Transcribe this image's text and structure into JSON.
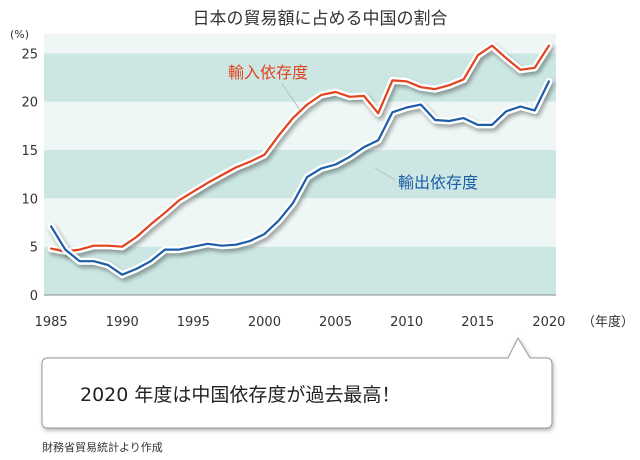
{
  "chart_data": {
    "type": "line",
    "title": "日本の貿易額に占める中国の割合",
    "y_unit_label": "(%)",
    "x_unit_label": "（年度）",
    "ylim": [
      0,
      27
    ],
    "xlim": [
      1984.5,
      2020.5
    ],
    "y_ticks": [
      0,
      5,
      10,
      15,
      20,
      25
    ],
    "x_ticks": [
      1985,
      1990,
      1995,
      2000,
      2005,
      2010,
      2015,
      2020
    ],
    "band_color_a": "#cce7e3",
    "band_color_b": "#eef7f6",
    "x": [
      1985,
      1986,
      1987,
      1988,
      1989,
      1990,
      1991,
      1992,
      1993,
      1994,
      1995,
      1996,
      1997,
      1998,
      1999,
      2000,
      2001,
      2002,
      2003,
      2004,
      2005,
      2006,
      2007,
      2008,
      2009,
      2010,
      2011,
      2012,
      2013,
      2014,
      2015,
      2016,
      2017,
      2018,
      2019,
      2020
    ],
    "series": [
      {
        "name": "輸入依存度",
        "color": "#e2431f",
        "values": [
          4.8,
          4.5,
          4.7,
          5.1,
          5.1,
          5.0,
          6.0,
          7.3,
          8.5,
          9.8,
          10.7,
          11.6,
          12.4,
          13.2,
          13.8,
          14.5,
          16.5,
          18.3,
          19.7,
          20.7,
          21.0,
          20.5,
          20.6,
          18.8,
          22.2,
          22.1,
          21.5,
          21.3,
          21.7,
          22.3,
          24.8,
          25.8,
          24.5,
          23.3,
          23.5,
          25.8
        ]
      },
      {
        "name": "輸出依存度",
        "color": "#1d5da8",
        "values": [
          7.1,
          4.7,
          3.5,
          3.5,
          3.1,
          2.1,
          2.7,
          3.5,
          4.7,
          4.7,
          5.0,
          5.3,
          5.1,
          5.2,
          5.6,
          6.3,
          7.7,
          9.5,
          12.2,
          13.1,
          13.5,
          14.3,
          15.3,
          16.0,
          18.9,
          19.4,
          19.7,
          18.1,
          18.0,
          18.3,
          17.6,
          17.6,
          19.0,
          19.5,
          19.1,
          22.1
        ]
      }
    ]
  },
  "callout": {
    "text": "2020 年度は中国依存度が過去最高！"
  },
  "source": "財務省貿易統計より作成"
}
